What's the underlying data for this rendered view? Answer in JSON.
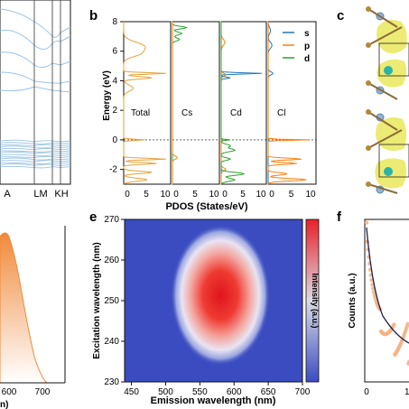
{
  "panel_labels": {
    "b": "b",
    "c": "c",
    "e": "e",
    "f": "f"
  },
  "colors": {
    "band": "#9dc3e6",
    "total": "#e6a23c",
    "s": "#1f77b4",
    "p": "#ff7f0e",
    "d": "#2ca02c",
    "orange_fill": "#f5a25d",
    "heat_low": "#3b4cc0",
    "heat_high": "#e8202a",
    "fit_line": "#1f1f4f",
    "scatter": "#f4b183"
  },
  "panel_a_top": {
    "xticks": [
      "A",
      "LM",
      "KH"
    ]
  },
  "panel_a_bottom": {
    "xticks": [
      "600",
      "700"
    ],
    "xlabel_fragment": "n)"
  },
  "panel_b": {
    "ylabel": "Energy (eV)",
    "yticks": [
      "8",
      "6",
      "4",
      "2",
      "0",
      "-2"
    ],
    "xlabel": "PDOS (States/eV)",
    "xticks": [
      "0",
      "5",
      "10"
    ],
    "subpanels": [
      "Total",
      "Cs",
      "Cd",
      "Cl"
    ],
    "legend": [
      "s",
      "p",
      "d"
    ]
  },
  "chart_data": [
    {
      "type": "heatmap",
      "panel": "e",
      "title": "",
      "xlabel": "Emission wavelength (nm)",
      "ylabel": "Excitation wavelength (nm)",
      "xlim": [
        440,
        700
      ],
      "ylim": [
        230,
        270
      ],
      "xticks": [
        450,
        500,
        550,
        600,
        650,
        700
      ],
      "yticks": [
        230,
        240,
        250,
        260,
        270
      ],
      "peak": {
        "x": 580,
        "y": 250
      },
      "colorbar_label": "Intensity (a.u.)"
    },
    {
      "type": "scatter",
      "panel": "f",
      "ylabel": "Counts (a.u.)",
      "xticks": [
        "0"
      ]
    }
  ]
}
